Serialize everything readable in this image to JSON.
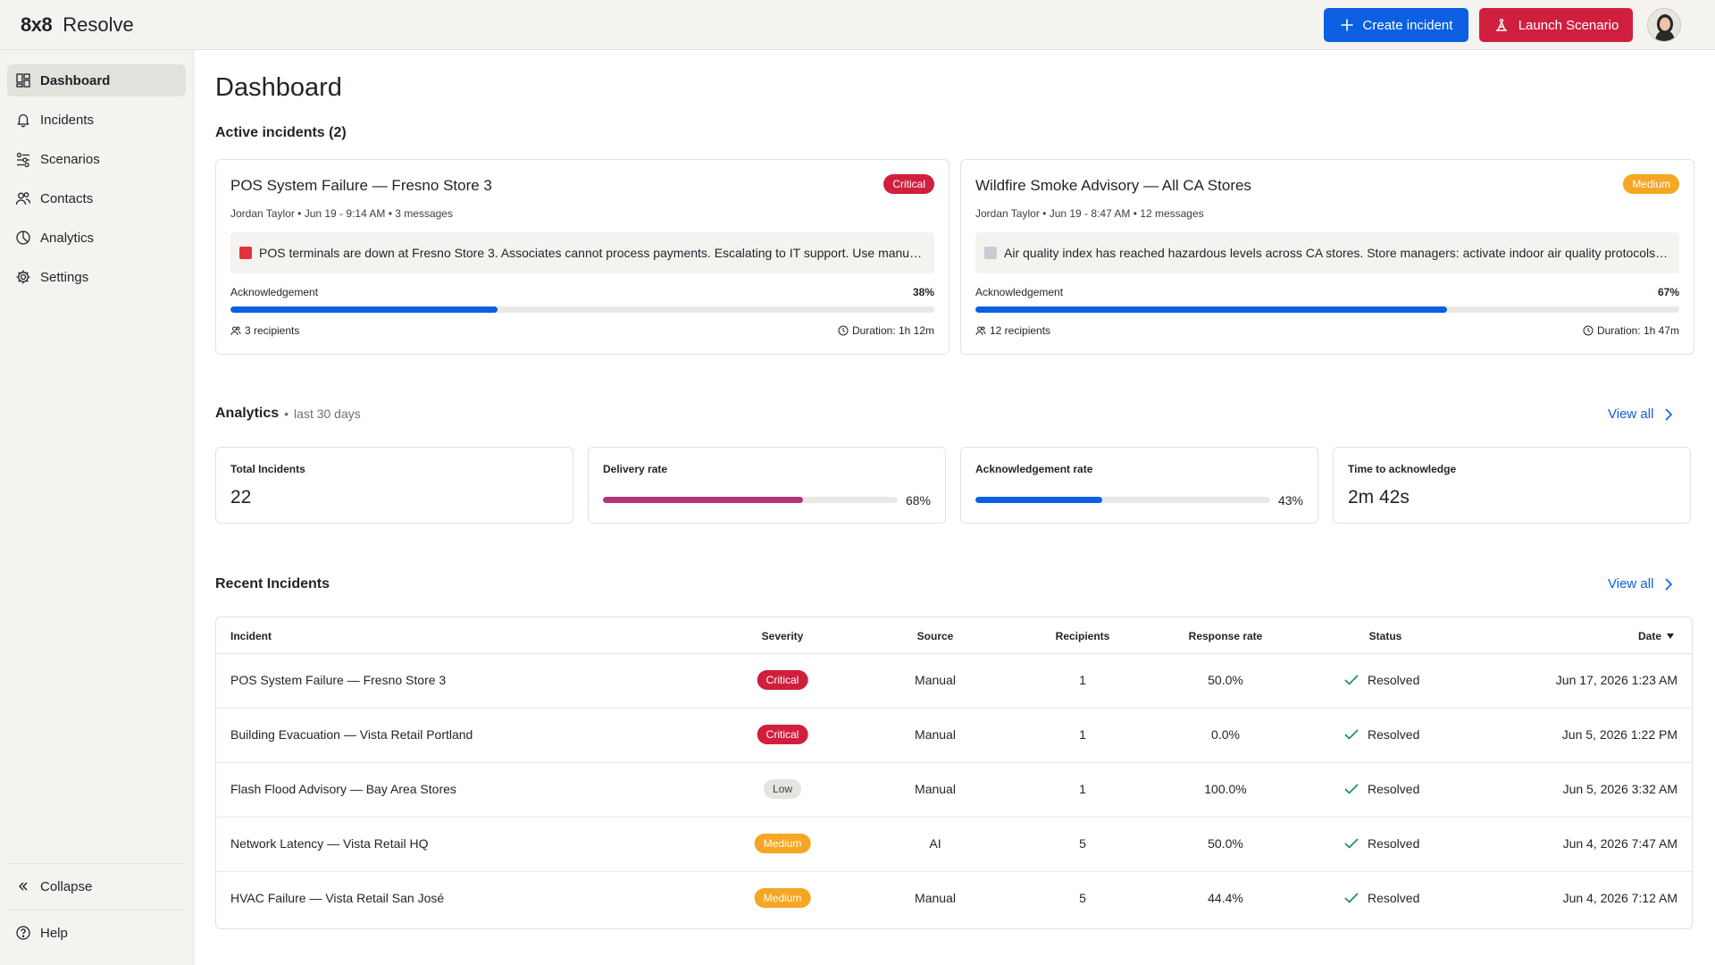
{
  "app": {
    "brand_mark": "8x8",
    "brand_name": "Resolve"
  },
  "header": {
    "create_label": "Create incident",
    "launch_label": "Launch Scenario",
    "colors": {
      "create": "#0b5fe0",
      "launch": "#d01f3d"
    }
  },
  "sidebar": {
    "items": [
      {
        "label": "Dashboard",
        "icon": "dashboard-icon",
        "active": true
      },
      {
        "label": "Incidents",
        "icon": "bell-icon",
        "active": false
      },
      {
        "label": "Scenarios",
        "icon": "scenarios-icon",
        "active": false
      },
      {
        "label": "Contacts",
        "icon": "contacts-icon",
        "active": false
      },
      {
        "label": "Analytics",
        "icon": "chart-pie-icon",
        "active": false
      },
      {
        "label": "Settings",
        "icon": "gear-icon",
        "active": false
      }
    ],
    "collapse_label": "Collapse",
    "help_label": "Help"
  },
  "page": {
    "title": "Dashboard"
  },
  "active_incidents": {
    "title": "Active incidents (2)",
    "cards": [
      {
        "title": "POS System Failure — Fresno Store 3",
        "severity": "Critical",
        "meta": "Jordan Taylor • Jun 19 - 9:14 AM • 3 messages",
        "message": "POS terminals are down at Fresno Store 3. Associates cannot process payments. Escalating to IT support. Use manual card imprint process until systems are restored.",
        "emoji_icon": "siren-icon",
        "ack_label": "Acknowledgement",
        "ack_value": "38%",
        "ack_fraction": 0.38,
        "recipients": "3 recipients",
        "duration": "Duration: 1h 12m"
      },
      {
        "title": "Wildfire Smoke Advisory — All CA Stores",
        "severity": "Medium",
        "meta": "Jordan Taylor • Jun 19 - 8:47 AM • 12 messages",
        "message": "Air quality index has reached hazardous levels across CA stores. Store managers: activate indoor air quality protocols and limit outdoor exposure for associates.",
        "emoji_icon": "smoke-icon",
        "ack_label": "Acknowledgement",
        "ack_value": "67%",
        "ack_fraction": 0.67,
        "recipients": "12 recipients",
        "duration": "Duration: 1h 47m"
      }
    ]
  },
  "analytics": {
    "title": "Analytics",
    "period": "last 30 days",
    "view_all": "View all",
    "stats": [
      {
        "label": "Total Incidents",
        "value": "22"
      },
      {
        "label": "Delivery rate",
        "value": "68%",
        "fraction": 0.68,
        "color": "#b2347a"
      },
      {
        "label": "Acknowledgement rate",
        "value": "43%",
        "fraction": 0.43,
        "color": "#0b5fe0"
      },
      {
        "label": "Time to acknowledge",
        "value": "2m 42s"
      }
    ]
  },
  "recent": {
    "title": "Recent Incidents",
    "view_all": "View all",
    "columns": {
      "incident": "Incident",
      "severity": "Severity",
      "source": "Source",
      "recipients": "Recipients",
      "response": "Response rate",
      "status": "Status",
      "date": "Date"
    },
    "rows": [
      {
        "incident": "POS System Failure — Fresno Store 3",
        "severity": "Critical",
        "source": "Manual",
        "recipients": "1",
        "response": "50.0%",
        "status": "Resolved",
        "date": "Jun 17, 2026 1:23 AM"
      },
      {
        "incident": "Building Evacuation — Vista Retail Portland",
        "severity": "Critical",
        "source": "Manual",
        "recipients": "1",
        "response": "0.0%",
        "status": "Resolved",
        "date": "Jun 5, 2026 1:22 PM"
      },
      {
        "incident": "Flash Flood Advisory — Bay Area Stores",
        "severity": "Low",
        "source": "Manual",
        "recipients": "1",
        "response": "100.0%",
        "status": "Resolved",
        "date": "Jun 5, 2026 3:32 AM"
      },
      {
        "incident": "Network Latency — Vista Retail HQ",
        "severity": "Medium",
        "source": "AI",
        "recipients": "5",
        "response": "50.0%",
        "status": "Resolved",
        "date": "Jun 4, 2026 7:47 AM"
      },
      {
        "incident": "HVAC Failure — Vista Retail San José",
        "severity": "Medium",
        "source": "Manual",
        "recipients": "5",
        "response": "44.4%",
        "status": "Resolved",
        "date": "Jun 4, 2026 7:12 AM"
      }
    ]
  }
}
